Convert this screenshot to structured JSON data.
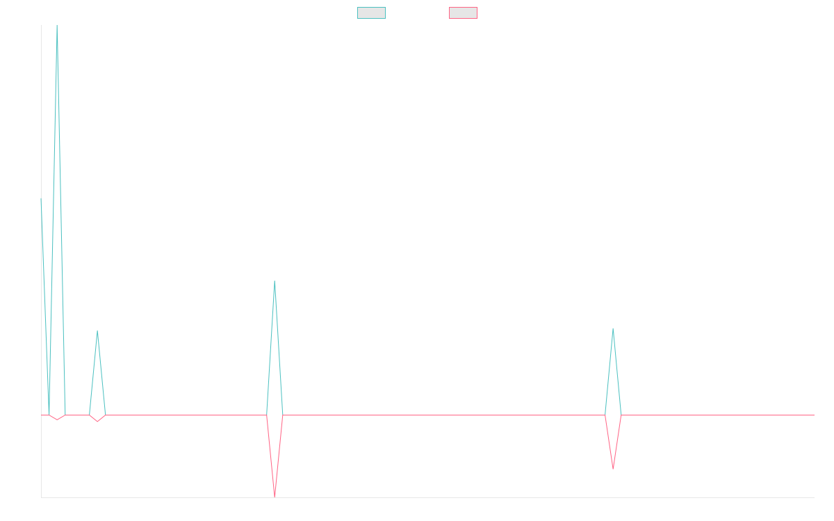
{
  "chart_data": {
    "type": "line",
    "title": "",
    "xlabel": "",
    "ylabel": "",
    "x_count": 97,
    "ylim": [
      -0.38,
      1.8
    ],
    "grid": false,
    "legend_position": "top-center",
    "series": [
      {
        "color": "#4bc0c0",
        "points": [
          [
            0,
            1.0
          ],
          [
            1,
            0.0
          ],
          [
            2,
            1.8
          ],
          [
            3,
            0.0
          ],
          [
            6,
            0.0
          ],
          [
            7,
            0.39
          ],
          [
            8,
            0.0
          ],
          [
            28,
            0.0
          ],
          [
            29,
            0.62
          ],
          [
            30,
            0.0
          ],
          [
            70,
            0.0
          ],
          [
            71,
            0.4
          ],
          [
            72,
            0.0
          ],
          [
            96,
            0.0
          ]
        ]
      },
      {
        "color": "#ff6384",
        "points": [
          [
            0,
            0.0
          ],
          [
            1,
            0.0
          ],
          [
            2,
            -0.022
          ],
          [
            3,
            0.0
          ],
          [
            6,
            0.0
          ],
          [
            7,
            -0.03
          ],
          [
            8,
            0.0
          ],
          [
            28,
            0.0
          ],
          [
            29,
            -0.38
          ],
          [
            30,
            0.0
          ],
          [
            70,
            0.0
          ],
          [
            71,
            -0.25
          ],
          [
            72,
            0.0
          ],
          [
            96,
            0.0
          ]
        ]
      }
    ]
  }
}
